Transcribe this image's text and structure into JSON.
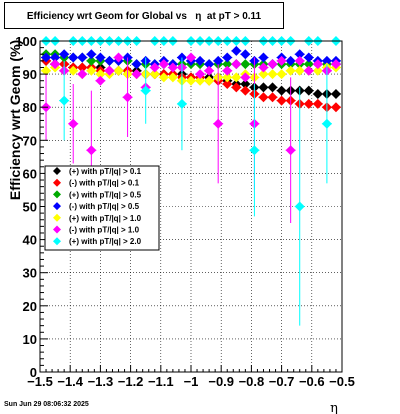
{
  "title": "Efficiency wrt Geom for Global vs   η  at pT > 0.11",
  "footer": "Sun Jun 29 08:06:32 2025",
  "chart_data": {
    "type": "scatter",
    "title": "Efficiency wrt Geom for Global vs   η  at pT > 0.11",
    "xlabel": "η",
    "ylabel": "Efficiency wrt Geom (%)",
    "xlim": [
      -1.5,
      -0.5
    ],
    "ylim": [
      0,
      100
    ],
    "grid": true,
    "legend_position": "left-middle",
    "xticks": [
      "−1.5",
      "−1.4",
      "−1.3",
      "−1.2",
      "−1.1",
      "−1",
      "−0.9",
      "−0.8",
      "−0.7",
      "−0.6",
      "−0.5"
    ],
    "yticks": [
      "0",
      "10",
      "20",
      "30",
      "40",
      "50",
      "60",
      "70",
      "80",
      "90",
      "100"
    ],
    "series": [
      {
        "name": "(+) with pT/|q| > 0.1",
        "color": "#000000",
        "x": [
          -1.48,
          -1.45,
          -1.42,
          -1.39,
          -1.36,
          -1.33,
          -1.3,
          -1.27,
          -1.24,
          -1.21,
          -1.18,
          -1.15,
          -1.12,
          -1.09,
          -1.06,
          -1.03,
          -1.0,
          -0.97,
          -0.94,
          -0.91,
          -0.88,
          -0.85,
          -0.82,
          -0.79,
          -0.76,
          -0.73,
          -0.7,
          -0.67,
          -0.64,
          -0.61,
          -0.58,
          -0.55,
          -0.52
        ],
        "y": [
          94,
          93,
          93,
          92,
          92,
          92,
          92,
          91,
          91,
          91,
          91,
          90,
          90,
          90,
          90,
          90,
          89,
          89,
          89,
          89,
          88,
          87,
          87,
          86,
          86,
          86,
          85,
          85,
          85,
          85,
          84,
          84,
          84
        ]
      },
      {
        "name": "(-) with pT/|q| > 0.1",
        "color": "#ff0000",
        "x": [
          -1.48,
          -1.45,
          -1.42,
          -1.39,
          -1.36,
          -1.33,
          -1.3,
          -1.27,
          -1.24,
          -1.21,
          -1.18,
          -1.15,
          -1.12,
          -1.09,
          -1.06,
          -1.03,
          -1.0,
          -0.97,
          -0.94,
          -0.91,
          -0.88,
          -0.85,
          -0.82,
          -0.79,
          -0.76,
          -0.73,
          -0.7,
          -0.67,
          -0.64,
          -0.61,
          -0.58,
          -0.55,
          -0.52
        ],
        "y": [
          94,
          93,
          93,
          92,
          92,
          92,
          91,
          91,
          91,
          91,
          90,
          90,
          90,
          90,
          90,
          89,
          89,
          89,
          88,
          88,
          87,
          86,
          85,
          84,
          83,
          83,
          82,
          82,
          81,
          81,
          81,
          80,
          80
        ]
      },
      {
        "name": "(+) with pT/|q| > 0.5",
        "color": "#00aa00",
        "x": [
          -1.48,
          -1.45,
          -1.42,
          -1.39,
          -1.36,
          -1.33,
          -1.3,
          -1.27,
          -1.24,
          -1.21,
          -1.18,
          -1.15,
          -1.12,
          -1.09,
          -1.06,
          -1.03,
          -1.0,
          -0.97,
          -0.94,
          -0.91,
          -0.88,
          -0.85,
          -0.82,
          -0.79,
          -0.76,
          -0.73,
          -0.7,
          -0.67,
          -0.64,
          -0.61,
          -0.58,
          -0.55,
          -0.52
        ],
        "y": [
          96,
          96,
          95,
          95,
          95,
          94,
          94,
          94,
          94,
          94,
          93,
          93,
          93,
          93,
          93,
          93,
          93,
          93,
          93,
          93,
          93,
          93,
          93,
          93,
          93,
          93,
          93,
          93,
          93,
          93,
          93,
          93,
          93
        ]
      },
      {
        "name": "(-) with pT/|q| > 0.5",
        "color": "#0000ff",
        "x": [
          -1.48,
          -1.45,
          -1.42,
          -1.39,
          -1.36,
          -1.33,
          -1.3,
          -1.27,
          -1.24,
          -1.21,
          -1.18,
          -1.15,
          -1.12,
          -1.09,
          -1.06,
          -1.03,
          -1.0,
          -0.97,
          -0.94,
          -0.91,
          -0.88,
          -0.85,
          -0.82,
          -0.79,
          -0.76,
          -0.73,
          -0.7,
          -0.67,
          -0.64,
          -0.61,
          -0.58,
          -0.55,
          -0.52
        ],
        "y": [
          95,
          95,
          96,
          95,
          95,
          96,
          95,
          94,
          94,
          95,
          93,
          94,
          93,
          94,
          93,
          95,
          94,
          94,
          93,
          94,
          95,
          97,
          96,
          94,
          95,
          93,
          95,
          94,
          96,
          95,
          94,
          94,
          94
        ]
      },
      {
        "name": "(+) with pT/|q| > 1.0",
        "color": "#ffff00",
        "x": [
          -1.48,
          -1.45,
          -1.42,
          -1.39,
          -1.36,
          -1.33,
          -1.3,
          -1.27,
          -1.24,
          -1.21,
          -1.18,
          -1.15,
          -1.12,
          -1.09,
          -1.06,
          -1.03,
          -1.0,
          -0.97,
          -0.94,
          -0.91,
          -0.88,
          -0.85,
          -0.82,
          -0.79,
          -0.76,
          -0.73,
          -0.7,
          -0.67,
          -0.64,
          -0.61,
          -0.58,
          -0.55,
          -0.52
        ],
        "y": [
          91,
          92,
          91,
          91,
          90,
          91,
          90,
          90,
          91,
          90,
          90,
          90,
          90,
          89,
          89,
          88,
          88,
          88,
          88,
          89,
          89,
          89,
          90,
          89,
          90,
          90,
          90,
          91,
          91,
          91,
          91,
          92,
          92
        ]
      },
      {
        "name": "(-) with pT/|q| > 1.0",
        "color": "#ff00ff",
        "x": [
          -1.48,
          -1.45,
          -1.42,
          -1.39,
          -1.36,
          -1.33,
          -1.3,
          -1.27,
          -1.24,
          -1.21,
          -1.18,
          -1.15,
          -1.12,
          -1.09,
          -1.06,
          -1.03,
          -1.0,
          -0.97,
          -0.94,
          -0.91,
          -0.88,
          -0.85,
          -0.82,
          -0.79,
          -0.76,
          -0.73,
          -0.7,
          -0.67,
          -0.64,
          -0.61,
          -0.58,
          -0.55,
          -0.52
        ],
        "y": [
          80,
          93,
          91,
          75,
          90,
          67,
          88,
          91,
          95,
          83,
          90,
          86,
          92,
          93,
          92,
          92,
          95,
          90,
          91,
          75,
          91,
          93,
          89,
          75,
          92,
          93,
          94,
          67,
          94,
          91,
          93,
          91,
          93
        ],
        "err": [
          10,
          0,
          0,
          12,
          0,
          18,
          0,
          0,
          0,
          12,
          0,
          0,
          0,
          0,
          0,
          0,
          0,
          0,
          0,
          18,
          0,
          0,
          0,
          20,
          0,
          0,
          0,
          22,
          0,
          0,
          0,
          0,
          0
        ]
      },
      {
        "name": "(+) with pT/|q| > 2.0",
        "color": "#00ffff",
        "x": [
          -1.48,
          -1.45,
          -1.42,
          -1.39,
          -1.36,
          -1.33,
          -1.3,
          -1.27,
          -1.24,
          -1.21,
          -1.18,
          -1.15,
          -1.12,
          -1.09,
          -1.06,
          -1.03,
          -1.0,
          -0.97,
          -0.94,
          -0.91,
          -0.88,
          -0.85,
          -0.82,
          -0.79,
          -0.76,
          -0.73,
          -0.7,
          -0.67,
          -0.64,
          -0.61,
          -0.58,
          -0.55,
          -0.52
        ],
        "y": [
          100,
          100,
          82,
          100,
          100,
          100,
          100,
          100,
          100,
          100,
          100,
          85,
          100,
          100,
          100,
          81,
          100,
          100,
          100,
          100,
          100,
          100,
          100,
          67,
          100,
          100,
          100,
          100,
          50,
          100,
          100,
          75,
          100
        ],
        "err": [
          0,
          0,
          12,
          0,
          0,
          0,
          0,
          0,
          0,
          0,
          0,
          10,
          0,
          0,
          0,
          14,
          0,
          0,
          0,
          0,
          0,
          0,
          0,
          20,
          0,
          0,
          0,
          0,
          36,
          0,
          0,
          18,
          0
        ]
      }
    ]
  }
}
